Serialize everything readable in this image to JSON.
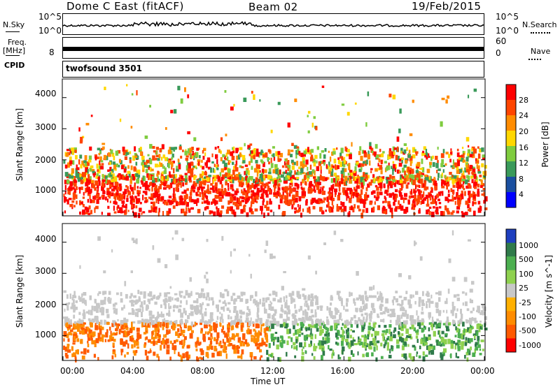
{
  "header": {
    "title": "Dome C East (fitACF)",
    "beam": "Beam 02",
    "date": "19/Feb/2015"
  },
  "top_panels": {
    "nsky_label": "N.Sky",
    "nsky_ticks": [
      "10^5",
      "10^0"
    ],
    "nsearch_label": "N.Search",
    "freq_label": "Freq.",
    "freq_unit": "[MHz]",
    "freq_tick": "8",
    "nave_label": "Nave",
    "nave_ticks": [
      "60",
      "0"
    ],
    "cpid_label": "CPID",
    "cpid_value": "twofsound 3501"
  },
  "chart_data": [
    {
      "type": "heatmap",
      "name": "power-panel",
      "ylabel": "Slant Range [km]",
      "y_ticks": [
        "4000",
        "3000",
        "2000",
        "1000"
      ],
      "y_values": [
        4000,
        3000,
        2000,
        1000
      ],
      "ylim": [
        200,
        4600
      ],
      "x_ticks": [
        "00:00",
        "04:00",
        "08:00",
        "12:00",
        "16:00",
        "20:00",
        "00:00"
      ],
      "colorbar_label": "Power [dB]",
      "colorbar_ticks": [
        "28",
        "24",
        "20",
        "16",
        "12",
        "8",
        "4"
      ],
      "colorbar_colors": [
        "#ff0000",
        "#ff4500",
        "#ff8c00",
        "#ffd700",
        "#7fcc3f",
        "#3a9a5a",
        "#1a4fa0",
        "#0000ff"
      ]
    },
    {
      "type": "heatmap",
      "name": "velocity-panel",
      "ylabel": "Slant Range [km]",
      "y_ticks": [
        "4000",
        "3000",
        "2000",
        "1000"
      ],
      "y_values": [
        4000,
        3000,
        2000,
        1000
      ],
      "ylim": [
        200,
        4600
      ],
      "xlabel": "Time UT",
      "x_ticks": [
        "00:00",
        "04:00",
        "08:00",
        "12:00",
        "16:00",
        "20:00",
        "00:00"
      ],
      "colorbar_label": "Velocity [m s^-1]",
      "colorbar_ticks": [
        "1000",
        "500",
        "100",
        "25",
        "-25",
        "-100",
        "-500",
        "-1000"
      ],
      "colorbar_colors": [
        "#1e3fbf",
        "#2f7a4a",
        "#4caf50",
        "#8fd14f",
        "#c8c8c8",
        "#ffb000",
        "#ff8c00",
        "#ff5a00",
        "#ff0000"
      ]
    }
  ]
}
